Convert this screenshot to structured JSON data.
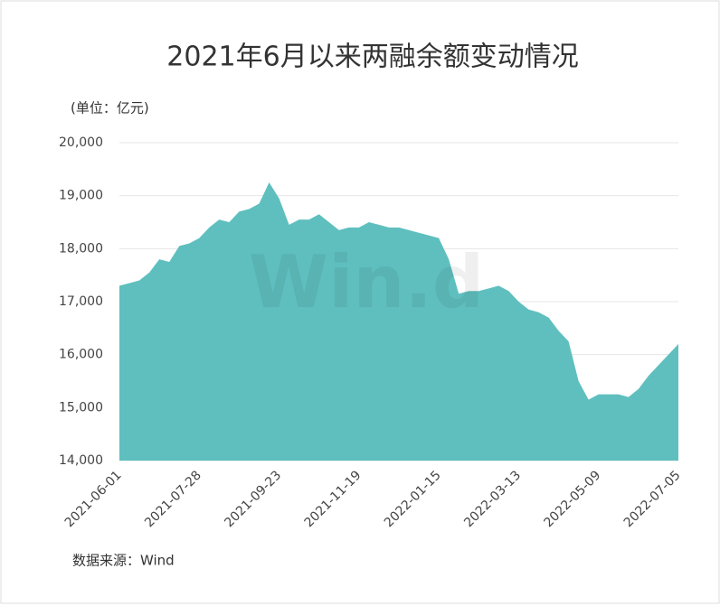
{
  "chart_data": {
    "type": "area",
    "title": "2021年6月以来两融余额变动情况",
    "unit_label": "(单位：亿元)",
    "source": "数据来源：Wind",
    "watermark": "Win.d",
    "color": "#5fbfbf",
    "categories": [
      "2021-06-01",
      null,
      null,
      null,
      null,
      null,
      null,
      null,
      "2021-07-28",
      null,
      null,
      null,
      null,
      null,
      null,
      null,
      "2021-09-23",
      null,
      null,
      null,
      null,
      null,
      null,
      null,
      "2021-11-19",
      null,
      null,
      null,
      null,
      null,
      null,
      null,
      "2022-01-15",
      null,
      null,
      null,
      null,
      null,
      null,
      null,
      "2022-03-13",
      null,
      null,
      null,
      null,
      null,
      null,
      null,
      "2022-05-09",
      null,
      null,
      null,
      null,
      null,
      null,
      null,
      "2022-07-05"
    ],
    "values": [
      17300,
      17350,
      17400,
      17550,
      17800,
      17750,
      18050,
      18100,
      18200,
      18400,
      18550,
      18500,
      18700,
      18750,
      18850,
      19250,
      18950,
      18450,
      18550,
      18550,
      18650,
      18500,
      18350,
      18400,
      18400,
      18500,
      18450,
      18400,
      18400,
      18350,
      18300,
      18250,
      18200,
      17800,
      17150,
      17200,
      17200,
      17250,
      17300,
      17200,
      17000,
      16850,
      16800,
      16700,
      16450,
      16250,
      15500,
      15150,
      15250,
      15250,
      15250,
      15200,
      15350,
      15600,
      15800,
      16000,
      16200
    ],
    "ylim": [
      14000,
      20000
    ],
    "yticks": [
      {
        "value": 14000,
        "label": "14,000"
      },
      {
        "value": 15000,
        "label": "15,000"
      },
      {
        "value": 16000,
        "label": "16,000"
      },
      {
        "value": 17000,
        "label": "17,000"
      },
      {
        "value": 18000,
        "label": "18,000"
      },
      {
        "value": 19000,
        "label": "19,000"
      },
      {
        "value": 20000,
        "label": "20,000"
      }
    ],
    "grid": true
  }
}
